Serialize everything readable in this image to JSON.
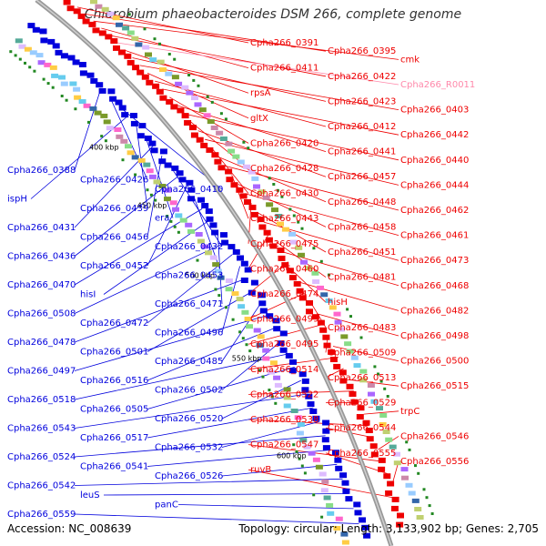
{
  "title": "Chlorobium phaeobacteroides DSM 266, complete genome",
  "footer": {
    "accession": "Accession: NC_008639",
    "topology": "Topology: circular; Length: 3,133,902 bp; Genes: 2,705"
  },
  "colors": {
    "forward": "#ee0000",
    "reverse": "#0000dd",
    "rna": "#ff88aa",
    "backbone": "#999999"
  },
  "kbp_labels": [
    "400 kbp",
    "450 kbp",
    "500 kbp",
    "550 kbp",
    "600 kbp"
  ],
  "right_labels": [
    {
      "text": "Cpha266_0391",
      "type": "f"
    },
    {
      "text": "Cpha266_0395",
      "type": "f"
    },
    {
      "text": "cmk",
      "type": "f"
    },
    {
      "text": "Cpha266_0411",
      "type": "f"
    },
    {
      "text": "Cpha266_0422",
      "type": "f"
    },
    {
      "text": "Cpha266_R0011",
      "type": "r"
    },
    {
      "text": "rpsA",
      "type": "f"
    },
    {
      "text": "Cpha266_0423",
      "type": "f"
    },
    {
      "text": "Cpha266_0403",
      "type": "f"
    },
    {
      "text": "gltX",
      "type": "f"
    },
    {
      "text": "Cpha266_0412",
      "type": "f"
    },
    {
      "text": "Cpha266_0442",
      "type": "f"
    },
    {
      "text": "Cpha266_0420",
      "type": "f"
    },
    {
      "text": "Cpha266_0441",
      "type": "f"
    },
    {
      "text": "Cpha266_0440",
      "type": "f"
    },
    {
      "text": "Cpha266_0428",
      "type": "f"
    },
    {
      "text": "Cpha266_0457",
      "type": "f"
    },
    {
      "text": "Cpha266_0444",
      "type": "f"
    },
    {
      "text": "Cpha266_0430",
      "type": "f"
    },
    {
      "text": "Cpha266_0448",
      "type": "f"
    },
    {
      "text": "Cpha266_0462",
      "type": "f"
    },
    {
      "text": "Cpha266_0443",
      "type": "f"
    },
    {
      "text": "Cpha266_0458",
      "type": "f"
    },
    {
      "text": "Cpha266_0461",
      "type": "f"
    },
    {
      "text": "Cpha266_0475",
      "type": "f"
    },
    {
      "text": "Cpha266_0451",
      "type": "f"
    },
    {
      "text": "Cpha266_0473",
      "type": "f"
    },
    {
      "text": "Cpha266_0460",
      "type": "f"
    },
    {
      "text": "Cpha266_0481",
      "type": "f"
    },
    {
      "text": "Cpha266_0468",
      "type": "f"
    },
    {
      "text": "Cpha266_0474",
      "type": "f"
    },
    {
      "text": "hisH",
      "type": "f"
    },
    {
      "text": "Cpha266_0482",
      "type": "f"
    },
    {
      "text": "Cpha266_0499",
      "type": "f"
    },
    {
      "text": "Cpha266_0483",
      "type": "f"
    },
    {
      "text": "Cpha266_0498",
      "type": "f"
    },
    {
      "text": "Cpha266_0495",
      "type": "f"
    },
    {
      "text": "Cpha266_0509",
      "type": "f"
    },
    {
      "text": "Cpha266_0500",
      "type": "f"
    },
    {
      "text": "Cpha266_0514",
      "type": "f"
    },
    {
      "text": "Cpha266_0513",
      "type": "f"
    },
    {
      "text": "Cpha266_0515",
      "type": "f"
    },
    {
      "text": "Cpha266_0522",
      "type": "f"
    },
    {
      "text": "Cpha266_0529",
      "type": "f"
    },
    {
      "text": "trpC",
      "type": "f"
    },
    {
      "text": "Cpha266_0538",
      "type": "f"
    },
    {
      "text": "Cpha266_0544",
      "type": "f"
    },
    {
      "text": "Cpha266_0546",
      "type": "f"
    },
    {
      "text": "Cpha266_0547",
      "type": "f"
    },
    {
      "text": "Cpha266_0555",
      "type": "f"
    },
    {
      "text": "Cpha266_0556",
      "type": "f"
    },
    {
      "text": "ruvB",
      "type": "f"
    }
  ],
  "left_labels": [
    "Cpha266_0388",
    "Cpha266_0426",
    "Cpha266_0410",
    "ispH",
    "Cpha266_0439",
    "era",
    "Cpha266_0431",
    "Cpha266_0456",
    "Cpha266_0432",
    "Cpha266_0436",
    "Cpha266_0452",
    "Cpha266_0453",
    "Cpha266_0470",
    "hisI",
    "Cpha266_0471",
    "Cpha266_0508",
    "Cpha266_0472",
    "Cpha266_0496",
    "Cpha266_0478",
    "Cpha266_0501",
    "Cpha266_0485",
    "Cpha266_0497",
    "Cpha266_0516",
    "Cpha266_0502",
    "Cpha266_0518",
    "Cpha266_0505",
    "Cpha266_0520",
    "Cpha266_0543",
    "Cpha266_0517",
    "Cpha266_0532",
    "Cpha266_0524",
    "Cpha266_0541",
    "Cpha266_0526",
    "Cpha266_0542",
    "leuS",
    "panC",
    "Cpha266_0559"
  ]
}
